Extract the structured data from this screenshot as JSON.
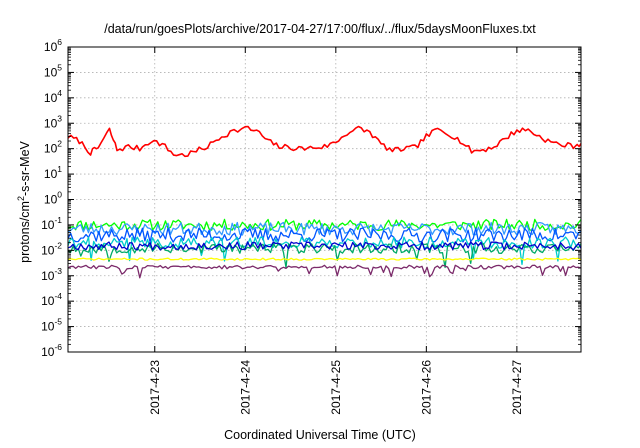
{
  "chart_data": {
    "type": "line",
    "title": "/data/run/goesPlots/archive/2017-04-27/17:00/flux/../flux/5daysMoonFluxes.txt",
    "xlabel": "Coordinated Universal Time (UTC)",
    "ylabel": {
      "prefix": "protons/cm",
      "sup": "2",
      "suffix": "-s-sr-MeV"
    },
    "xlim": [
      "2017-04-22 01:00",
      "2017-04-27 17:00"
    ],
    "x_ticks": [
      "2017-4-23",
      "2017-4-24",
      "2017-4-25",
      "2017-4-26",
      "2017-4-27"
    ],
    "y_scale": "log",
    "ylim": [
      1e-06,
      1000000.0
    ],
    "y_ticks": [
      {
        "base": "10",
        "exp": "-6",
        "value": 1e-06
      },
      {
        "base": "10",
        "exp": "-5",
        "value": 1e-05
      },
      {
        "base": "10",
        "exp": "-4",
        "value": 0.0001
      },
      {
        "base": "10",
        "exp": "-3",
        "value": 0.001
      },
      {
        "base": "10",
        "exp": "-2",
        "value": 0.01
      },
      {
        "base": "10",
        "exp": "-1",
        "value": 0.1
      },
      {
        "base": "10",
        "exp": "0",
        "value": 1
      },
      {
        "base": "10",
        "exp": "1",
        "value": 10
      },
      {
        "base": "10",
        "exp": "2",
        "value": 100
      },
      {
        "base": "10",
        "exp": "3",
        "value": 1000
      },
      {
        "base": "10",
        "exp": "4",
        "value": 10000
      },
      {
        "base": "10",
        "exp": "5",
        "value": 100000
      },
      {
        "base": "10",
        "exp": "6",
        "value": 1000000
      }
    ],
    "grid": true,
    "legend": "none",
    "series": [
      {
        "color": "#ff0000",
        "points": [
          [
            "2017-04-22 01:00",
            300
          ],
          [
            "2017-04-22 04:00",
            200
          ],
          [
            "2017-04-22 07:00",
            70
          ],
          [
            "2017-04-22 09:00",
            110
          ],
          [
            "2017-04-22 12:00",
            550
          ],
          [
            "2017-04-22 14:00",
            90
          ],
          [
            "2017-04-22 17:00",
            120
          ],
          [
            "2017-04-22 20:00",
            100
          ],
          [
            "2017-04-22 23:00",
            210
          ],
          [
            "2017-04-23 02:00",
            150
          ],
          [
            "2017-04-23 05:00",
            60
          ],
          [
            "2017-04-23 08:00",
            55
          ],
          [
            "2017-04-23 11:00",
            80
          ],
          [
            "2017-04-23 14:00",
            120
          ],
          [
            "2017-04-23 17:00",
            260
          ],
          [
            "2017-04-23 20:00",
            450
          ],
          [
            "2017-04-24 00:00",
            650
          ],
          [
            "2017-04-24 03:00",
            500
          ],
          [
            "2017-04-24 06:00",
            200
          ],
          [
            "2017-04-24 09:00",
            120
          ],
          [
            "2017-04-24 12:00",
            110
          ],
          [
            "2017-04-24 15:00",
            100
          ],
          [
            "2017-04-24 18:00",
            110
          ],
          [
            "2017-04-24 21:00",
            120
          ],
          [
            "2017-04-25 00:00",
            180
          ],
          [
            "2017-04-25 03:00",
            420
          ],
          [
            "2017-04-25 06:00",
            620
          ],
          [
            "2017-04-25 09:00",
            450
          ],
          [
            "2017-04-25 12:00",
            150
          ],
          [
            "2017-04-25 15:00",
            80
          ],
          [
            "2017-04-25 18:00",
            100
          ],
          [
            "2017-04-25 21:00",
            110
          ],
          [
            "2017-04-26 00:00",
            300
          ],
          [
            "2017-04-26 03:00",
            580
          ],
          [
            "2017-04-26 06:00",
            400
          ],
          [
            "2017-04-26 09:00",
            200
          ],
          [
            "2017-04-26 12:00",
            80
          ],
          [
            "2017-04-26 15:00",
            90
          ],
          [
            "2017-04-26 18:00",
            120
          ],
          [
            "2017-04-26 21:00",
            260
          ],
          [
            "2017-04-27 00:00",
            520
          ],
          [
            "2017-04-27 03:00",
            550
          ],
          [
            "2017-04-27 06:00",
            300
          ],
          [
            "2017-04-27 09:00",
            180
          ],
          [
            "2017-04-27 12:00",
            140
          ],
          [
            "2017-04-27 15:00",
            130
          ],
          [
            "2017-04-27 17:00",
            160
          ]
        ]
      },
      {
        "color": "#00ff00",
        "base": 0.1,
        "amp": 0.22,
        "dip": 0.0,
        "seed": 11
      },
      {
        "color": "#3399ff",
        "base": 0.07,
        "amp": 0.25,
        "dip": 0.0,
        "seed": 23
      },
      {
        "color": "#0055ff",
        "base": 0.04,
        "amp": 0.28,
        "dip": 0.0,
        "seed": 37
      },
      {
        "color": "#00cccc",
        "base": 0.02,
        "amp": 0.22,
        "dip": 0.55,
        "seed": 41
      },
      {
        "color": "#00aa66",
        "base": 0.012,
        "amp": 0.2,
        "dip": 0.5,
        "seed": 53
      },
      {
        "color": "#0000cc",
        "base": 0.015,
        "amp": 0.16,
        "dip": 0.0,
        "seed": 67
      },
      {
        "color": "#ffff00",
        "base": 0.0045,
        "amp": 0.04,
        "dip": 0.0,
        "seed": 71
      },
      {
        "color": "#7b2a6a",
        "base": 0.0022,
        "amp": 0.07,
        "dip": 0.3,
        "seed": 83
      }
    ]
  }
}
